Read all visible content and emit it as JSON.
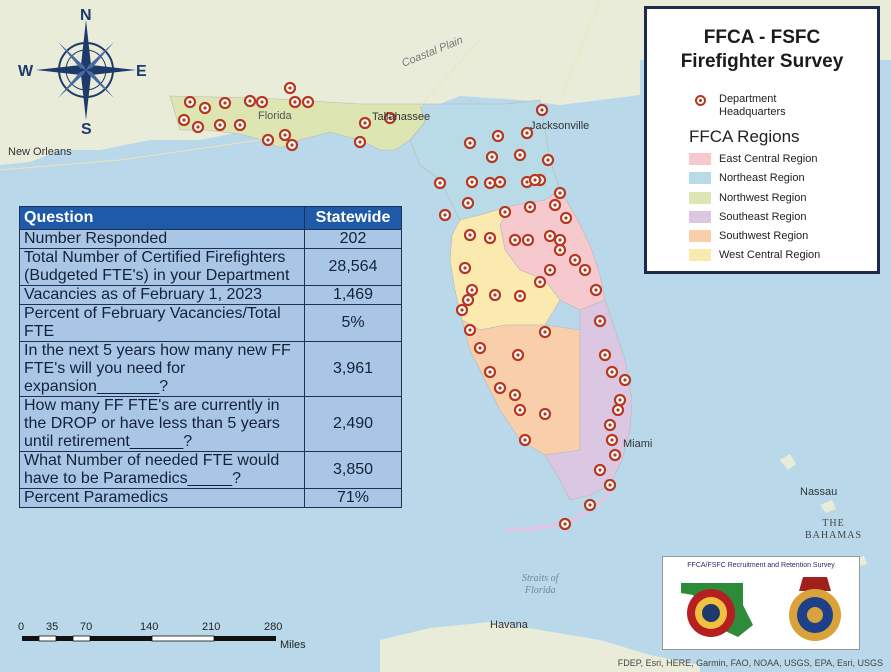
{
  "legend": {
    "title_line1": "FFCA - FSFC",
    "title_line2": "Firefighter Survey",
    "hq_label_line1": "Department",
    "hq_label_line2": "Headquarters",
    "regions_title": "FFCA Regions",
    "regions": [
      {
        "name": "East Central Region",
        "color": "#f6c9cf"
      },
      {
        "name": "Northeast Region",
        "color": "#b9dbe8"
      },
      {
        "name": "Northwest Region",
        "color": "#dde6b3"
      },
      {
        "name": "Southeast Region",
        "color": "#dcc7e3"
      },
      {
        "name": "Southwest Region",
        "color": "#f9cfab"
      },
      {
        "name": "West Central Region",
        "color": "#fbeab0"
      }
    ]
  },
  "table": {
    "header_question": "Question",
    "header_statewide": "Statewide",
    "rows": [
      {
        "question": "Number Responded",
        "value": "202"
      },
      {
        "question": "Total Number of Certified Firefighters (Budgeted FTE's) in your Department",
        "value": "28,564"
      },
      {
        "question": "Vacancies as of February 1, 2023",
        "value": "1,469"
      },
      {
        "question": "Percent of February Vacancies/Total FTE",
        "value": "5%"
      },
      {
        "question": "In the next 5 years how many new FF FTE's will you need for expansion_______?",
        "value": "3,961"
      },
      {
        "question": "How many FF FTE's are currently in the DROP or have less than 5 years until retirement______?",
        "value": "2,490"
      },
      {
        "question": "What Number of needed FTE would have to be Paramedics_____?",
        "value": "3,850"
      },
      {
        "question": "Percent Paramedics",
        "value": "71%"
      }
    ]
  },
  "compass": {
    "n": "N",
    "s": "S",
    "e": "E",
    "w": "W"
  },
  "map_labels": {
    "new_orleans": "New Orleans",
    "florida": "Florida",
    "tallahassee": "Tallahassee",
    "jacksonville": "Jacksonville",
    "coastal_plain": "Coastal Plain",
    "miami": "Miami",
    "nassau": "Nassau",
    "bahamas_line1": "THE",
    "bahamas_line2": "BAHAMAS",
    "havana": "Havana",
    "straits_line1": "Straits of",
    "straits_line2": "Florida"
  },
  "scale": {
    "ticks": [
      "0",
      "35",
      "70",
      "140",
      "210",
      "280"
    ],
    "unit": "Miles"
  },
  "logos": {
    "title": "FFCA/FSFC Recruitment and Retention Survey"
  },
  "attribution": "FDEP, Esri, HERE, Garmin, FAO, NOAA, USGS, EPA, Esri, USGS",
  "colors": {
    "marker": "#b5381f",
    "table_header": "#1f5aa8",
    "table_cell": "#a9c6e6",
    "water": "#b9d9ea",
    "land": "#e9ecd9"
  }
}
